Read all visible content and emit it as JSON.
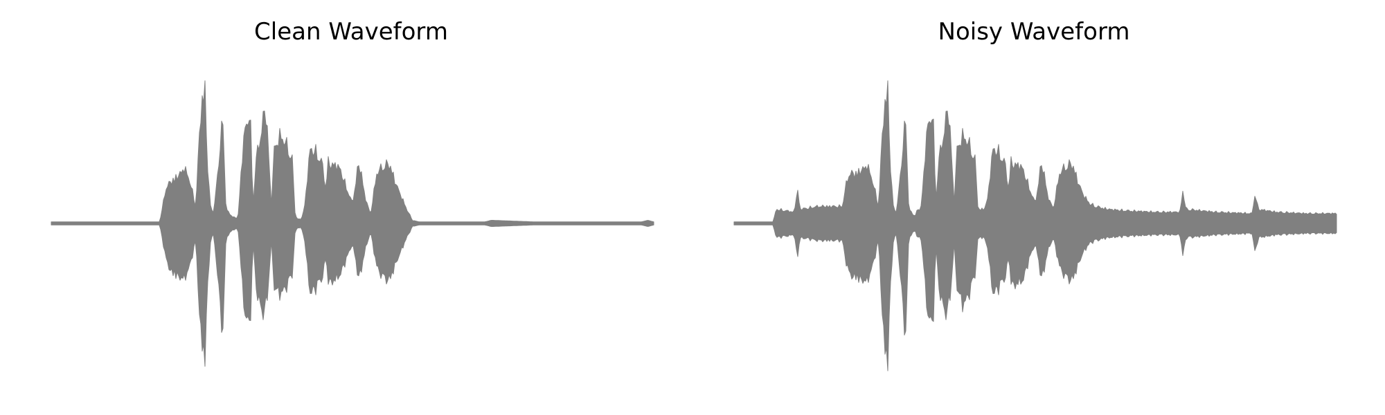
{
  "chart_data": [
    {
      "type": "area",
      "title": "Clean Waveform",
      "xlabel": "",
      "ylabel": "",
      "axes_visible": false,
      "grid": false,
      "legend": "none",
      "color": "#808080",
      "ylim": [
        -1.0,
        1.0
      ],
      "envelope": {
        "x": [
          0.0,
          0.18,
          0.185,
          0.19,
          0.2,
          0.215,
          0.22,
          0.23,
          0.24,
          0.245,
          0.25,
          0.255,
          0.26,
          0.265,
          0.27,
          0.285,
          0.29,
          0.3,
          0.305,
          0.31,
          0.315,
          0.32,
          0.33,
          0.335,
          0.34,
          0.35,
          0.355,
          0.36,
          0.365,
          0.37,
          0.38,
          0.39,
          0.4,
          0.405,
          0.41,
          0.415,
          0.42,
          0.43,
          0.44,
          0.45,
          0.455,
          0.46,
          0.465,
          0.47,
          0.48,
          0.49,
          0.5,
          0.51,
          0.515,
          0.52,
          0.53,
          0.54,
          0.55,
          0.56,
          0.565,
          0.57,
          0.58,
          0.59,
          0.6,
          0.61,
          0.62,
          0.63,
          0.64,
          0.65,
          0.66,
          0.67,
          0.68,
          0.72,
          0.73,
          0.8,
          0.98,
          0.99,
          1.0
        ],
        "upper": [
          0.01,
          0.01,
          0.12,
          0.25,
          0.3,
          0.35,
          0.4,
          0.3,
          0.12,
          0.55,
          0.88,
          0.95,
          0.35,
          0.1,
          0.08,
          0.75,
          0.1,
          0.05,
          0.04,
          0.04,
          0.35,
          0.62,
          0.8,
          0.12,
          0.45,
          0.68,
          0.82,
          0.6,
          0.1,
          0.52,
          0.62,
          0.56,
          0.45,
          0.05,
          0.03,
          0.03,
          0.1,
          0.53,
          0.5,
          0.42,
          0.25,
          0.44,
          0.4,
          0.42,
          0.38,
          0.25,
          0.14,
          0.42,
          0.35,
          0.2,
          0.06,
          0.35,
          0.4,
          0.42,
          0.38,
          0.3,
          0.2,
          0.1,
          0.02,
          0.01,
          0.01,
          0.01,
          0.01,
          0.01,
          0.01,
          0.01,
          0.01,
          0.01,
          0.02,
          0.01,
          0.01,
          0.02,
          0.01
        ],
        "lower": [
          -0.01,
          -0.01,
          -0.12,
          -0.25,
          -0.35,
          -0.38,
          -0.4,
          -0.3,
          -0.12,
          -0.55,
          -0.88,
          -0.95,
          -0.4,
          -0.1,
          -0.08,
          -0.8,
          -0.1,
          -0.05,
          -0.04,
          -0.04,
          -0.3,
          -0.6,
          -0.75,
          -0.12,
          -0.45,
          -0.65,
          -0.58,
          -0.5,
          -0.1,
          -0.45,
          -0.5,
          -0.45,
          -0.36,
          -0.05,
          -0.03,
          -0.03,
          -0.1,
          -0.5,
          -0.45,
          -0.38,
          -0.25,
          -0.4,
          -0.42,
          -0.4,
          -0.36,
          -0.25,
          -0.14,
          -0.38,
          -0.33,
          -0.2,
          -0.06,
          -0.3,
          -0.38,
          -0.4,
          -0.37,
          -0.3,
          -0.2,
          -0.1,
          -0.02,
          -0.01,
          -0.01,
          -0.01,
          -0.01,
          -0.01,
          -0.01,
          -0.01,
          -0.01,
          -0.01,
          -0.02,
          -0.01,
          -0.01,
          -0.02,
          -0.01
        ]
      }
    },
    {
      "type": "area",
      "title": "Noisy Waveform",
      "xlabel": "",
      "ylabel": "",
      "axes_visible": false,
      "grid": false,
      "legend": "none",
      "color": "#808080",
      "ylim": [
        -1.0,
        1.0
      ],
      "envelope": {
        "x": [
          0.0,
          0.065,
          0.07,
          0.1,
          0.105,
          0.11,
          0.14,
          0.18,
          0.185,
          0.19,
          0.2,
          0.215,
          0.22,
          0.23,
          0.24,
          0.245,
          0.25,
          0.255,
          0.26,
          0.265,
          0.27,
          0.285,
          0.29,
          0.3,
          0.305,
          0.31,
          0.315,
          0.32,
          0.33,
          0.335,
          0.34,
          0.35,
          0.355,
          0.36,
          0.365,
          0.37,
          0.38,
          0.39,
          0.4,
          0.405,
          0.41,
          0.415,
          0.42,
          0.43,
          0.44,
          0.45,
          0.455,
          0.46,
          0.465,
          0.47,
          0.48,
          0.49,
          0.5,
          0.51,
          0.515,
          0.52,
          0.53,
          0.54,
          0.55,
          0.56,
          0.565,
          0.57,
          0.58,
          0.59,
          0.6,
          0.62,
          0.65,
          0.7,
          0.74,
          0.745,
          0.75,
          0.8,
          0.86,
          0.865,
          0.87,
          0.9,
          0.95,
          1.0
        ],
        "upper": [
          0.01,
          0.01,
          0.1,
          0.08,
          0.24,
          0.1,
          0.12,
          0.12,
          0.25,
          0.35,
          0.35,
          0.38,
          0.42,
          0.3,
          0.12,
          0.55,
          0.85,
          0.95,
          0.35,
          0.1,
          0.08,
          0.75,
          0.1,
          0.05,
          0.1,
          0.1,
          0.35,
          0.65,
          0.8,
          0.15,
          0.45,
          0.68,
          0.82,
          0.6,
          0.12,
          0.52,
          0.62,
          0.56,
          0.45,
          0.1,
          0.1,
          0.1,
          0.15,
          0.53,
          0.5,
          0.42,
          0.25,
          0.44,
          0.4,
          0.42,
          0.38,
          0.25,
          0.14,
          0.42,
          0.35,
          0.2,
          0.1,
          0.35,
          0.4,
          0.42,
          0.38,
          0.3,
          0.2,
          0.14,
          0.12,
          0.1,
          0.09,
          0.08,
          0.08,
          0.23,
          0.1,
          0.08,
          0.07,
          0.22,
          0.1,
          0.08,
          0.07,
          0.07
        ],
        "lower": [
          -0.01,
          -0.01,
          -0.1,
          -0.08,
          -0.24,
          -0.1,
          -0.12,
          -0.12,
          -0.25,
          -0.35,
          -0.38,
          -0.4,
          -0.42,
          -0.3,
          -0.12,
          -0.55,
          -0.9,
          -0.98,
          -0.4,
          -0.1,
          -0.08,
          -0.82,
          -0.1,
          -0.05,
          -0.1,
          -0.1,
          -0.3,
          -0.6,
          -0.75,
          -0.15,
          -0.45,
          -0.65,
          -0.58,
          -0.5,
          -0.12,
          -0.45,
          -0.58,
          -0.5,
          -0.36,
          -0.1,
          -0.1,
          -0.1,
          -0.15,
          -0.5,
          -0.45,
          -0.38,
          -0.25,
          -0.4,
          -0.45,
          -0.42,
          -0.4,
          -0.25,
          -0.14,
          -0.38,
          -0.33,
          -0.2,
          -0.1,
          -0.3,
          -0.38,
          -0.4,
          -0.37,
          -0.3,
          -0.2,
          -0.14,
          -0.12,
          -0.1,
          -0.09,
          -0.08,
          -0.08,
          -0.23,
          -0.1,
          -0.08,
          -0.07,
          -0.22,
          -0.1,
          -0.08,
          -0.07,
          -0.07
        ]
      }
    }
  ]
}
